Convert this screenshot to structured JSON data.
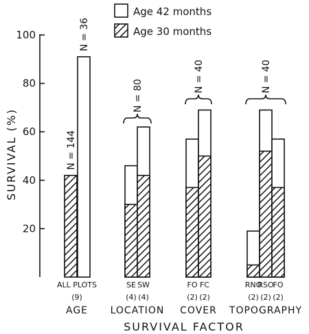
{
  "chart_data": {
    "type": "bar",
    "title": "",
    "xlabel": "SURVIVAL FACTOR",
    "ylabel": "SURVIVAL (%)",
    "ylim": [
      0,
      100
    ],
    "yticks": [
      20,
      40,
      60,
      80,
      100
    ],
    "grid": false,
    "legend": {
      "placement": "top",
      "entries": [
        {
          "name": "Age 42 months",
          "fill": "#ffffff"
        },
        {
          "name": "Age 30 months",
          "pattern": "hatched"
        }
      ]
    },
    "series": [
      {
        "name": "Age 42 months",
        "values": [
          91,
          46,
          62,
          57,
          69,
          19,
          69,
          57
        ]
      },
      {
        "name": "Age 30 months",
        "values": [
          42,
          30,
          42,
          37,
          50,
          5,
          52,
          37
        ]
      }
    ],
    "categories": [
      {
        "id": "all-plots",
        "label": "ALL PLOTS",
        "count": "(9)",
        "group": "AGE"
      },
      {
        "id": "se",
        "label": "SE",
        "count": "(4)",
        "group": "LOCATION"
      },
      {
        "id": "sw",
        "label": "SW",
        "count": "(4)",
        "group": "LOCATION"
      },
      {
        "id": "cover-fo",
        "label": "FO",
        "count": "(2)",
        "group": "COVER"
      },
      {
        "id": "cover-fc",
        "label": "FC",
        "count": "(2)",
        "group": "COVER"
      },
      {
        "id": "rno",
        "label": "RNO",
        "count": "(2)",
        "group": "TOPOGRAPHY"
      },
      {
        "id": "rso",
        "label": "RSO",
        "count": "(2)",
        "group": "TOPOGRAPHY"
      },
      {
        "id": "topo-fo",
        "label": "FO",
        "count": "(2)",
        "group": "TOPOGRAPHY"
      }
    ],
    "groups": [
      "AGE",
      "LOCATION",
      "COVER",
      "TOPOGRAPHY"
    ],
    "annotations": [
      {
        "text": "N = 144",
        "refers_to": "Age 30 months, ALL PLOTS"
      },
      {
        "text": "N = 36",
        "refers_to": "Age 42 months, ALL PLOTS"
      },
      {
        "text": "N = 80",
        "refers_to": "LOCATION"
      },
      {
        "text": "N = 40",
        "refers_to": "COVER"
      },
      {
        "text": "N = 40",
        "refers_to": "TOPOGRAPHY"
      }
    ]
  }
}
